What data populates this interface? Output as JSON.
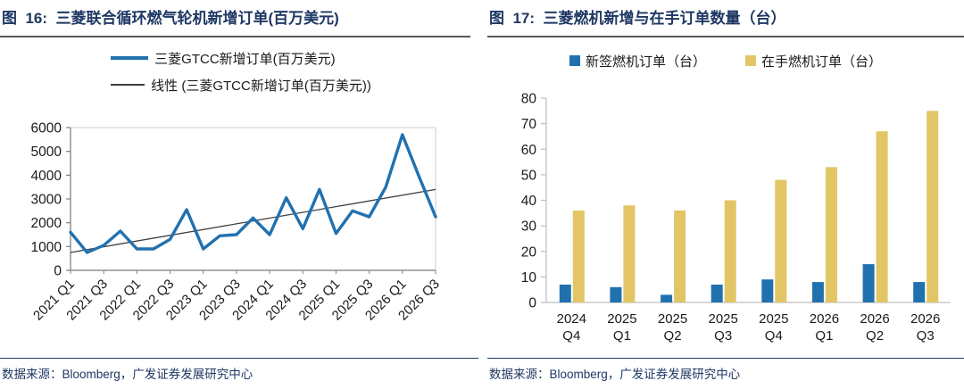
{
  "colors": {
    "title_navy": "#1F3864",
    "title_underline": "#595959",
    "line_blue": "#2171AF",
    "trend_gray": "#3F3F3F",
    "bar_blue": "#2171AF",
    "bar_yellow": "#E2C565",
    "axis_gray": "#808080",
    "plot_border_gray": "#D9D9D9",
    "light_axis_gray": "#BFBFBF",
    "tick_label": "#1a1a1a"
  },
  "figures": [
    {
      "source_note": "数据来源：Bloomberg，广发证券发展研究中心"
    },
    {
      "source_note": "数据来源：Bloomberg，广发证券发展研究中心"
    }
  ],
  "chart_data": [
    {
      "type": "line",
      "title": "图  16:  三菱联合循环燃气轮机新增订单(百万美元)",
      "categories": [
        "2021 Q1",
        "2021 Q2",
        "2021 Q3",
        "2021 Q4",
        "2022 Q1",
        "2022 Q2",
        "2022 Q3",
        "2022 Q4",
        "2023 Q1",
        "2023 Q2",
        "2023 Q3",
        "2023 Q4",
        "2024 Q1",
        "2024 Q2",
        "2024 Q3",
        "2024 Q4",
        "2025 Q1",
        "2025 Q2",
        "2025 Q3",
        "2025 Q4",
        "2026 Q1",
        "2026 Q2",
        "2026 Q3"
      ],
      "x_tick_labels": [
        "2021 Q1",
        "2021 Q3",
        "2022 Q1",
        "2022 Q3",
        "2023 Q1",
        "2023 Q3",
        "2024 Q1",
        "2024 Q3",
        "2025 Q1",
        "2025 Q3",
        "2026 Q1",
        "2026 Q3"
      ],
      "series": [
        {
          "name": "三菱GTCC新增订单(百万美元)",
          "kind": "line",
          "color": "#2171AF",
          "values": [
            1600,
            750,
            1050,
            1650,
            900,
            900,
            1300,
            2550,
            900,
            1450,
            1500,
            2200,
            1500,
            3050,
            1750,
            3400,
            1550,
            2500,
            2250,
            3500,
            5700,
            3950,
            2250
          ]
        },
        {
          "name": "线性 (三菱GTCC新增订单(百万美元))",
          "kind": "linear-trend",
          "color": "#3F3F3F",
          "trend_start": 750,
          "trend_end": 3400
        }
      ],
      "ylim": [
        0,
        6000
      ],
      "ytick_step": 1000,
      "grid": false,
      "legend_position": "top"
    },
    {
      "type": "bar",
      "title": "图  17:  三菱燃机新增与在手订单数量（台）",
      "categories": [
        "2024 Q4",
        "2025 Q1",
        "2025 Q2",
        "2025 Q3",
        "2025 Q4",
        "2026 Q1",
        "2026 Q2",
        "2026 Q3"
      ],
      "series": [
        {
          "name": "新签燃机订单（台）",
          "color": "#2171AF",
          "values": [
            7,
            6,
            3,
            7,
            9,
            8,
            15,
            8
          ]
        },
        {
          "name": "在手燃机订单（台）",
          "color": "#E2C565",
          "values": [
            36,
            38,
            36,
            40,
            48,
            53,
            67,
            75
          ]
        }
      ],
      "ylim": [
        0,
        80
      ],
      "ytick_step": 10,
      "grid": false,
      "legend_position": "top"
    }
  ]
}
